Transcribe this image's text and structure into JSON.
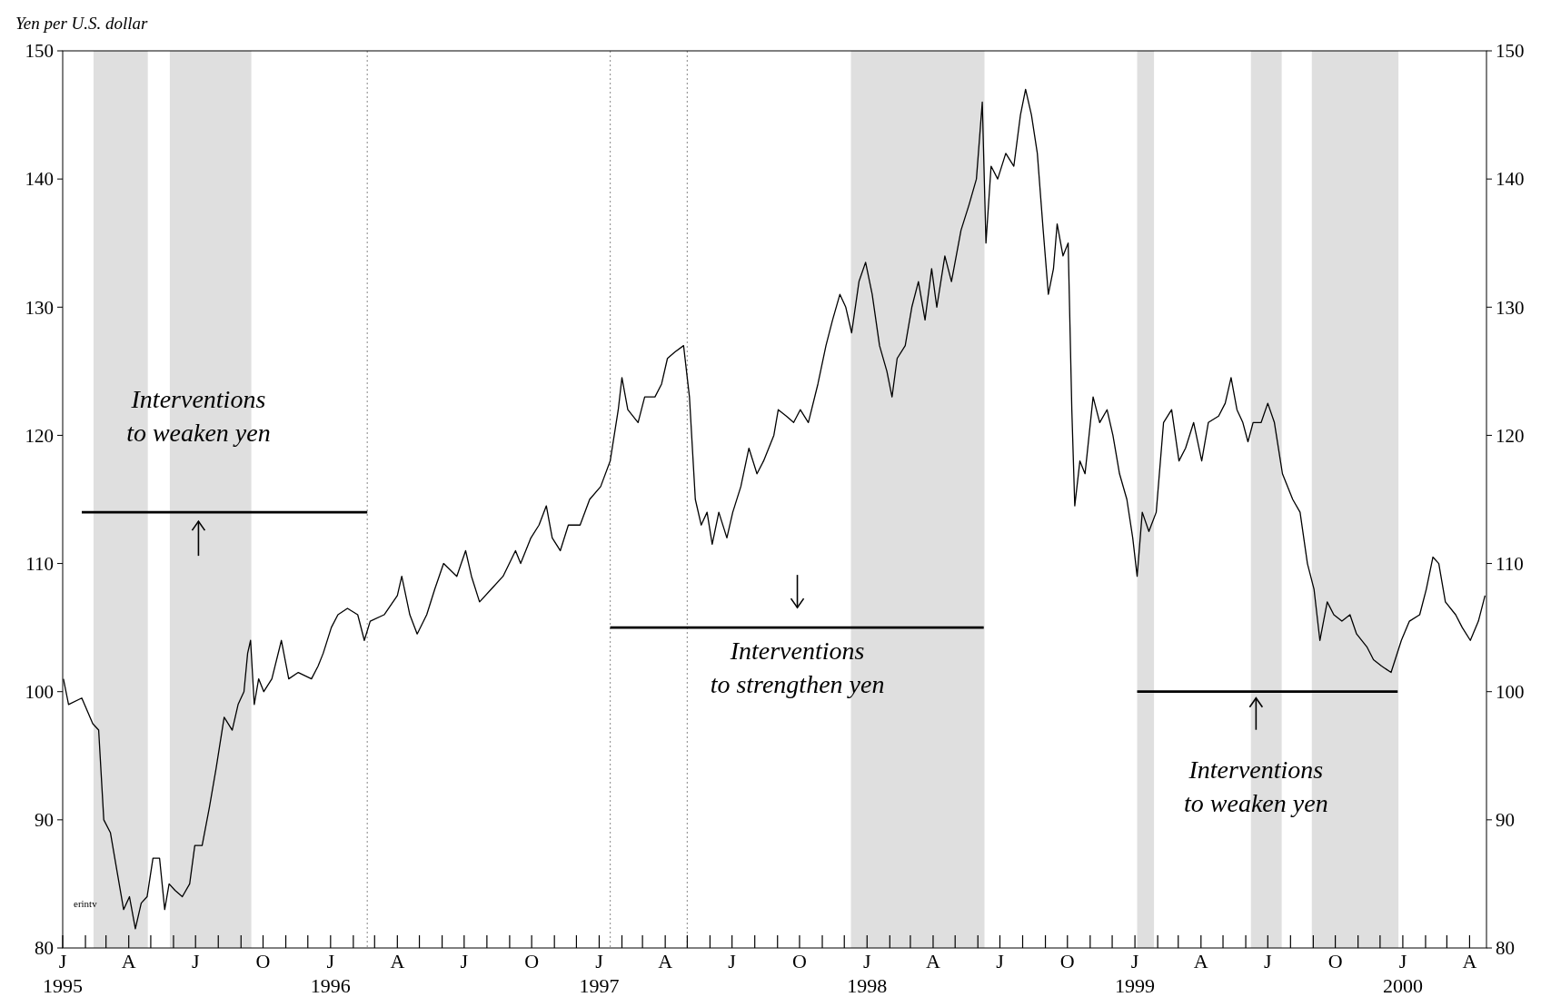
{
  "chart_data": {
    "type": "line",
    "ylabel": "Yen per U.S. dollar",
    "xlim": [
      "1995-01-01",
      "2000-04-24"
    ],
    "xticks": [
      {
        "value": "1995-01-01",
        "label": "J\n1995"
      },
      {
        "value": "1995-02-01",
        "label": null
      },
      {
        "value": "1995-03-01",
        "label": null
      },
      {
        "value": "1995-04-01",
        "label": "A"
      },
      {
        "value": "1995-05-01",
        "label": null
      },
      {
        "value": "1995-06-01",
        "label": null
      },
      {
        "value": "1995-07-01",
        "label": "J"
      },
      {
        "value": "1995-08-01",
        "label": null
      },
      {
        "value": "1995-09-01",
        "label": null
      },
      {
        "value": "1995-10-01",
        "label": "O"
      },
      {
        "value": "1995-11-01",
        "label": null
      },
      {
        "value": "1995-12-01",
        "label": null
      },
      {
        "value": "1996-01-01",
        "label": "J\n1996"
      },
      {
        "value": "1996-02-01",
        "label": null
      },
      {
        "value": "1996-03-01",
        "label": null
      },
      {
        "value": "1996-04-01",
        "label": "A"
      },
      {
        "value": "1996-05-01",
        "label": null
      },
      {
        "value": "1996-06-01",
        "label": null
      },
      {
        "value": "1996-07-01",
        "label": "J"
      },
      {
        "value": "1996-08-01",
        "label": null
      },
      {
        "value": "1996-09-01",
        "label": null
      },
      {
        "value": "1996-10-01",
        "label": "O"
      },
      {
        "value": "1996-11-01",
        "label": null
      },
      {
        "value": "1996-12-01",
        "label": null
      },
      {
        "value": "1997-01-01",
        "label": "J\n1997"
      },
      {
        "value": "1997-02-01",
        "label": null
      },
      {
        "value": "1997-03-01",
        "label": null
      },
      {
        "value": "1997-04-01",
        "label": "A"
      },
      {
        "value": "1997-05-01",
        "label": null
      },
      {
        "value": "1997-06-01",
        "label": null
      },
      {
        "value": "1997-07-01",
        "label": "J"
      },
      {
        "value": "1997-08-01",
        "label": null
      },
      {
        "value": "1997-09-01",
        "label": null
      },
      {
        "value": "1997-10-01",
        "label": "O"
      },
      {
        "value": "1997-11-01",
        "label": null
      },
      {
        "value": "1997-12-01",
        "label": null
      },
      {
        "value": "1998-01-01",
        "label": "J\n1998"
      },
      {
        "value": "1998-02-01",
        "label": null
      },
      {
        "value": "1998-03-01",
        "label": null
      },
      {
        "value": "1998-04-01",
        "label": "A"
      },
      {
        "value": "1998-05-01",
        "label": null
      },
      {
        "value": "1998-06-01",
        "label": null
      },
      {
        "value": "1998-07-01",
        "label": "J"
      },
      {
        "value": "1998-08-01",
        "label": null
      },
      {
        "value": "1998-09-01",
        "label": null
      },
      {
        "value": "1998-10-01",
        "label": "O"
      },
      {
        "value": "1998-11-01",
        "label": null
      },
      {
        "value": "1998-12-01",
        "label": null
      },
      {
        "value": "1999-01-01",
        "label": "J\n1999"
      },
      {
        "value": "1999-02-01",
        "label": null
      },
      {
        "value": "1999-03-01",
        "label": null
      },
      {
        "value": "1999-04-01",
        "label": "A"
      },
      {
        "value": "1999-05-01",
        "label": null
      },
      {
        "value": "1999-06-01",
        "label": null
      },
      {
        "value": "1999-07-01",
        "label": "J"
      },
      {
        "value": "1999-08-01",
        "label": null
      },
      {
        "value": "1999-09-01",
        "label": null
      },
      {
        "value": "1999-10-01",
        "label": "O"
      },
      {
        "value": "1999-11-01",
        "label": null
      },
      {
        "value": "1999-12-01",
        "label": null
      },
      {
        "value": "2000-01-01",
        "label": "J\n2000"
      },
      {
        "value": "2000-02-01",
        "label": null
      },
      {
        "value": "2000-03-01",
        "label": null
      },
      {
        "value": "2000-04-01",
        "label": "A"
      }
    ],
    "ylim": [
      80,
      150
    ],
    "yticks": [
      80,
      90,
      100,
      110,
      120,
      130,
      140,
      150
    ],
    "y2lim": [
      80,
      150
    ],
    "y2ticks": [
      80,
      90,
      100,
      110,
      120,
      130,
      140,
      150
    ],
    "grid": false,
    "series": [
      {
        "type": "line",
        "color": "#000000",
        "x": [
          "1995-01-02",
          "1995-01-09",
          "1995-01-27",
          "1995-02-11",
          "1995-02-19",
          "1995-02-26",
          "1995-03-07",
          "1995-03-16",
          "1995-03-25",
          "1995-04-02",
          "1995-04-10",
          "1995-04-18",
          "1995-04-26",
          "1995-05-04",
          "1995-05-13",
          "1995-05-20",
          "1995-05-26",
          "1995-06-03",
          "1995-06-13",
          "1995-06-23",
          "1995-06-30",
          "1995-07-10",
          "1995-07-20",
          "1995-07-29",
          "1995-08-09",
          "1995-08-20",
          "1995-08-28",
          "1995-09-05",
          "1995-09-10",
          "1995-09-14",
          "1995-09-19",
          "1995-09-25",
          "1995-10-02",
          "1995-10-13",
          "1995-10-26",
          "1995-11-05",
          "1995-11-18",
          "1995-12-06",
          "1995-12-15",
          "1995-12-22",
          "1996-01-02",
          "1996-01-11",
          "1996-01-24",
          "1996-02-07",
          "1996-02-16",
          "1996-02-24",
          "1996-03-14",
          "1996-04-01",
          "1996-04-07",
          "1996-04-18",
          "1996-04-28",
          "1996-05-11",
          "1996-05-22",
          "1996-06-03",
          "1996-06-21",
          "1996-07-03",
          "1996-07-11",
          "1996-07-22",
          "1996-08-07",
          "1996-08-23",
          "1996-09-09",
          "1996-09-16",
          "1996-09-30",
          "1996-10-11",
          "1996-10-21",
          "1996-10-29",
          "1996-11-09",
          "1996-11-20",
          "1996-12-06",
          "1996-12-19",
          "1997-01-03",
          "1997-01-16",
          "1997-01-27",
          "1997-02-01",
          "1997-02-09",
          "1997-02-23",
          "1997-03-04",
          "1997-03-18",
          "1997-03-27",
          "1997-04-04",
          "1997-04-14",
          "1997-04-26",
          "1997-05-04",
          "1997-05-12",
          "1997-05-20",
          "1997-05-28",
          "1997-06-04",
          "1997-06-13",
          "1997-06-24",
          "1997-07-02",
          "1997-07-13",
          "1997-07-24",
          "1997-08-04",
          "1997-08-13",
          "1997-08-27",
          "1997-09-02",
          "1997-09-13",
          "1997-09-23",
          "1997-10-02",
          "1997-10-13",
          "1997-10-26",
          "1997-11-06",
          "1997-11-15",
          "1997-11-25",
          "1997-12-03",
          "1997-12-11",
          "1997-12-21",
          "1997-12-30",
          "1998-01-08",
          "1998-01-18",
          "1998-01-28",
          "1998-02-04",
          "1998-02-11",
          "1998-02-22",
          "1998-03-03",
          "1998-03-12",
          "1998-03-21",
          "1998-03-30",
          "1998-04-06",
          "1998-04-17",
          "1998-04-26",
          "1998-05-09",
          "1998-05-20",
          "1998-05-30",
          "1998-06-07",
          "1998-06-12",
          "1998-06-19",
          "1998-06-28",
          "1998-07-09",
          "1998-07-20",
          "1998-07-29",
          "1998-08-05",
          "1998-08-13",
          "1998-08-21",
          "1998-08-29",
          "1998-09-05",
          "1998-09-12",
          "1998-09-17",
          "1998-09-25",
          "1998-10-02",
          "1998-10-07",
          "1998-10-11",
          "1998-10-18",
          "1998-10-25",
          "1998-11-05",
          "1998-11-14",
          "1998-11-24",
          "1998-12-02",
          "1998-12-11",
          "1998-12-21",
          "1998-12-29",
          "1999-01-04",
          "1999-01-11",
          "1999-01-20",
          "1999-01-30",
          "1999-02-09",
          "1999-02-20",
          "1999-03-02",
          "1999-03-11",
          "1999-03-22",
          "1999-04-02",
          "1999-04-11",
          "1999-04-25",
          "1999-05-04",
          "1999-05-12",
          "1999-05-20",
          "1999-05-28",
          "1999-06-04",
          "1999-06-11",
          "1999-06-22",
          "1999-07-01",
          "1999-07-10",
          "1999-07-21",
          "1999-08-04",
          "1999-08-14",
          "1999-08-24",
          "1999-09-02",
          "1999-09-10",
          "1999-09-20",
          "1999-09-29",
          "1999-10-10",
          "1999-10-21",
          "1999-10-30",
          "1999-11-13",
          "1999-11-22",
          "1999-12-03",
          "1999-12-16",
          "1999-12-30",
          "2000-01-10",
          "2000-01-24",
          "2000-02-02",
          "2000-02-11",
          "2000-02-19",
          "2000-02-28",
          "2000-03-13",
          "2000-03-22",
          "2000-04-02",
          "2000-04-13",
          "2000-04-22"
        ],
        "values": [
          101,
          99,
          99.5,
          97.5,
          97,
          90,
          89,
          86,
          83,
          84,
          81.5,
          83.5,
          84,
          87,
          87,
          83,
          85,
          84.5,
          84,
          85,
          88,
          88,
          91,
          94,
          98,
          97,
          99,
          100,
          103,
          104,
          99,
          101,
          100,
          101,
          104,
          101,
          101.5,
          101,
          102,
          103,
          105,
          106,
          106.5,
          106,
          104,
          105.5,
          106,
          107.5,
          109,
          106,
          104.5,
          106,
          108,
          110,
          109,
          111,
          109,
          107,
          108,
          109,
          111,
          110,
          112,
          113,
          114.5,
          112,
          111,
          113,
          113,
          115,
          116,
          118,
          122,
          124.5,
          122,
          121,
          123,
          123,
          124,
          126,
          126.5,
          127,
          123,
          115,
          113,
          114,
          111.5,
          114,
          112,
          114,
          116,
          119,
          117,
          118,
          120,
          122,
          121.5,
          121,
          122,
          121,
          124,
          127,
          129,
          131,
          130,
          128,
          132,
          133.5,
          131,
          127,
          125,
          123,
          126,
          127,
          130,
          132,
          129,
          133,
          130,
          134,
          132,
          136,
          138,
          140,
          146,
          135,
          141,
          140,
          142,
          141,
          145,
          147,
          145,
          142,
          136,
          131,
          133,
          136.5,
          134,
          135,
          122,
          114.5,
          118,
          117,
          123,
          121,
          122,
          120,
          117,
          115,
          112,
          109,
          114,
          112.5,
          114,
          121,
          122,
          118,
          119,
          121,
          118,
          121,
          121.5,
          122.5,
          124.5,
          122,
          121,
          119.5,
          121,
          121,
          122.5,
          121,
          117,
          115,
          114,
          110,
          108,
          104,
          107,
          106,
          105.5,
          106,
          104.5,
          103.5,
          102.5,
          102,
          101.5,
          104,
          105.5,
          106,
          108,
          110.5,
          110,
          107,
          106,
          105,
          104,
          105.5,
          107.5
        ]
      },
      {
        "type": "line",
        "color": "#000000",
        "x": [
          "1995-01-27",
          "1996-02-20"
        ],
        "values": [
          114,
          114
        ]
      },
      {
        "type": "line",
        "color": "#000000",
        "x": [
          "1997-01-16",
          "1998-06-09"
        ],
        "values": [
          105,
          105
        ]
      },
      {
        "type": "line",
        "color": "#000000",
        "x": [
          "1999-01-04",
          "1999-12-25"
        ],
        "values": [
          100,
          100
        ]
      }
    ],
    "bands": [
      {
        "axis": "x",
        "from": "1995-02-12",
        "to": "1995-04-27",
        "color": "#d4d4d4"
      },
      {
        "axis": "x",
        "from": "1995-05-27",
        "to": "1995-09-15",
        "color": "#d4d4d4"
      },
      {
        "axis": "x",
        "from": "1997-12-10",
        "to": "1998-06-10",
        "color": "#d4d4d4"
      },
      {
        "axis": "x",
        "from": "1999-01-04",
        "to": "1999-01-27",
        "color": "#d4d4d4"
      },
      {
        "axis": "x",
        "from": "1999-06-08",
        "to": "1999-07-20",
        "color": "#d4d4d4"
      },
      {
        "axis": "x",
        "from": "1999-08-30",
        "to": "1999-12-26",
        "color": "#d4d4d4"
      }
    ],
    "ref_lines": [
      {
        "axis": "x",
        "value": "1996-02-20",
        "color": "#9a9a9a",
        "line_style": "dotted"
      },
      {
        "axis": "x",
        "value": "1997-01-16",
        "color": "#9a9a9a",
        "line_style": "dotted"
      },
      {
        "axis": "x",
        "value": "1997-05-01",
        "color": "#9a9a9a",
        "line_style": "dotted"
      }
    ],
    "annotations": [
      {
        "text": "Interventions to weaken yen",
        "x": "1995-07-05",
        "y": 114
      },
      {
        "text": "Interventions to strengthen yen",
        "x": "1997-09-28",
        "y": 105
      },
      {
        "text": "Interventions to weaken yen",
        "x": "1999-06-15",
        "y": 100
      },
      "erintv"
    ]
  }
}
